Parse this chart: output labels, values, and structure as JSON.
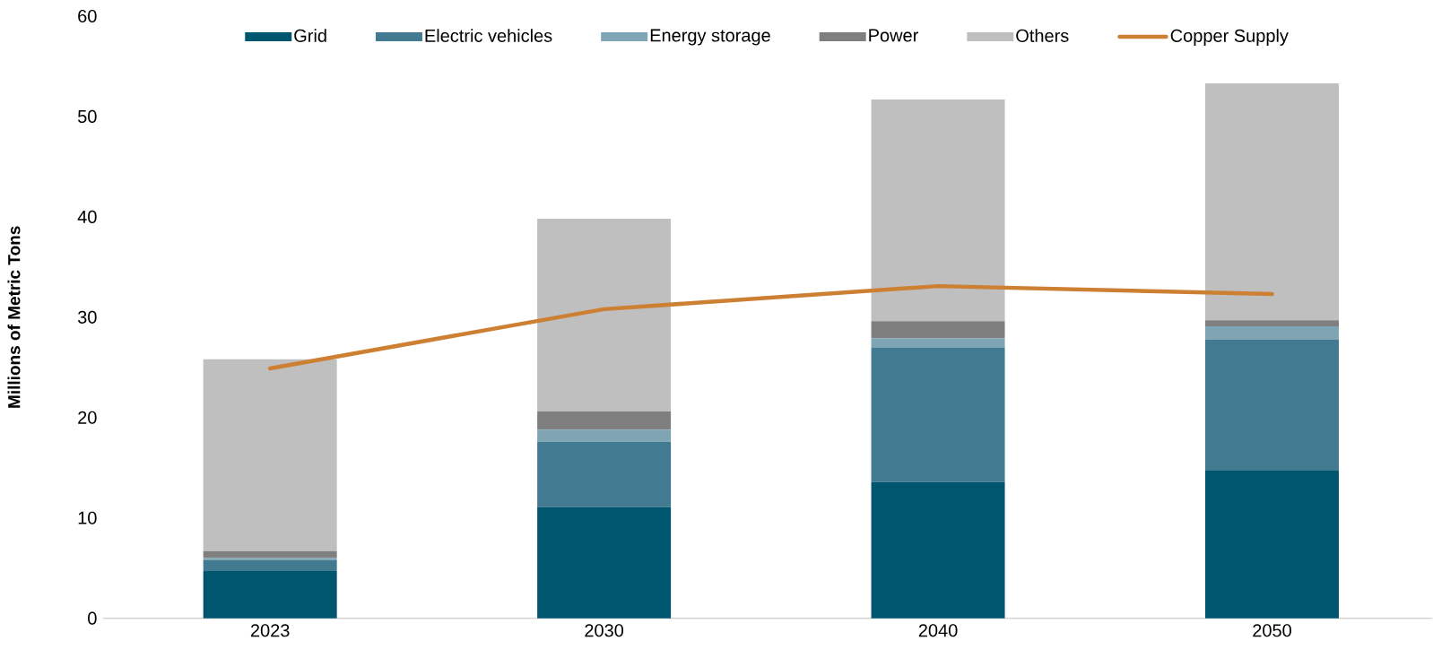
{
  "chart_data": {
    "type": "bar",
    "stacked": true,
    "ylabel": "Millions of Metric Tons",
    "categories": [
      "2023",
      "2030",
      "2040",
      "2050"
    ],
    "ylim": [
      0,
      60
    ],
    "yticks": [
      0,
      10,
      20,
      30,
      40,
      50,
      60
    ],
    "grid": false,
    "legend": "top",
    "series": [
      {
        "name": "Grid",
        "color": "#00566f",
        "values": [
          4.7,
          11.1,
          13.6,
          14.7
        ]
      },
      {
        "name": "Electric vehicles",
        "color": "#427b91",
        "values": [
          1.1,
          6.5,
          13.4,
          13.1
        ]
      },
      {
        "name": "Energy storage",
        "color": "#7fa5b5",
        "values": [
          0.2,
          1.2,
          0.9,
          1.3
        ]
      },
      {
        "name": "Power",
        "color": "#7f7f7f",
        "values": [
          0.7,
          1.8,
          1.7,
          0.6
        ]
      },
      {
        "name": "Others",
        "color": "#bfbfbf",
        "values": [
          19.1,
          19.2,
          22.1,
          23.6
        ]
      },
      {
        "name": "Copper Supply",
        "type": "line",
        "color": "#cd7f32",
        "values": [
          24.9,
          30.8,
          33.1,
          32.3
        ]
      }
    ]
  }
}
